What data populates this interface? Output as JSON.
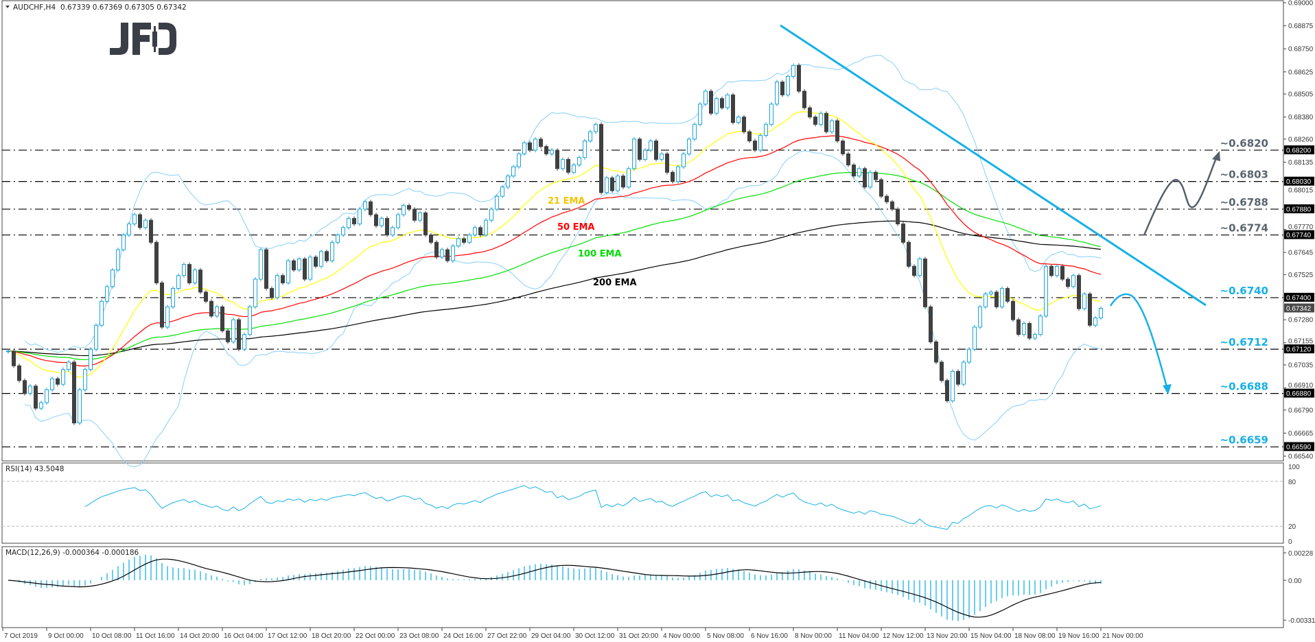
{
  "header": {
    "symbol": "AUDCHF,H4",
    "ohlc": "0.67339 0.67369 0.67305 0.67342"
  },
  "logo": "JFD",
  "colors": {
    "bull": "#1aa3d9",
    "bear": "#404040",
    "ema21": "#ffff00",
    "ema21_label": "#f5c400",
    "ema50": "#ff0000",
    "ema100": "#00dd00",
    "ema200": "#000000",
    "bands": "#87cefa",
    "trendline": "#17b0e6",
    "bull_scenario": "#56606a",
    "bear_scenario": "#17b0e6",
    "resistance_label": "#5a6570",
    "support_label": "#17b0e6"
  },
  "chart_data": {
    "type": "candlestick",
    "title": "AUDCHF,H4",
    "x_tick_labels": [
      "7 Oct 2019",
      "9 Oct 00:00",
      "10 Oct 08:00",
      "11 Oct 16:00",
      "14 Oct 20:00",
      "16 Oct 04:00",
      "17 Oct 12:00",
      "18 Oct 20:00",
      "22 Oct 00:00",
      "23 Oct 08:00",
      "24 Oct 16:00",
      "27 Oct 22:00",
      "29 Oct 04:00",
      "30 Oct 12:00",
      "31 Oct 20:00",
      "4 Nov 00:00",
      "5 Nov 08:00",
      "6 Nov 16:00",
      "8 Nov 00:00",
      "11 Nov 04:00",
      "12 Nov 12:00",
      "13 Nov 20:00",
      "15 Nov 04:00",
      "18 Nov 08:00",
      "19 Nov 16:00",
      "21 Nov 00:00"
    ],
    "y_ticks": [
      "0.69000",
      "0.68875",
      "0.68750",
      "0.68625",
      "0.68505",
      "0.68380",
      "0.68260",
      "0.68135",
      "0.68015",
      "0.67770",
      "0.67645",
      "0.67525",
      "0.67280",
      "0.67155",
      "0.67035",
      "0.66910",
      "0.66790",
      "0.66665",
      "0.66540"
    ],
    "ylim": [
      0.6654,
      0.69
    ],
    "last_price": "0.67342",
    "closes": [
      0.6711,
      0.6703,
      0.6695,
      0.6688,
      0.6692,
      0.668,
      0.6683,
      0.669,
      0.6696,
      0.6693,
      0.6701,
      0.6705,
      0.6672,
      0.669,
      0.6701,
      0.6712,
      0.6725,
      0.6738,
      0.6746,
      0.6755,
      0.6766,
      0.6774,
      0.678,
      0.6785,
      0.6778,
      0.6782,
      0.677,
      0.6748,
      0.6724,
      0.6735,
      0.6745,
      0.6752,
      0.6758,
      0.6748,
      0.6755,
      0.6743,
      0.6738,
      0.673,
      0.6735,
      0.6722,
      0.6716,
      0.6728,
      0.6712,
      0.672,
      0.6735,
      0.675,
      0.6766,
      0.6745,
      0.674,
      0.6752,
      0.6748,
      0.676,
      0.6755,
      0.6761,
      0.675,
      0.6762,
      0.6757,
      0.6765,
      0.676,
      0.677,
      0.6774,
      0.6778,
      0.6783,
      0.678,
      0.6788,
      0.6792,
      0.6785,
      0.6779,
      0.6783,
      0.6774,
      0.6778,
      0.6785,
      0.679,
      0.6788,
      0.6782,
      0.6786,
      0.6774,
      0.677,
      0.6762,
      0.6766,
      0.676,
      0.6768,
      0.6772,
      0.677,
      0.6774,
      0.6778,
      0.6774,
      0.6782,
      0.6788,
      0.6795,
      0.68,
      0.6806,
      0.6811,
      0.6818,
      0.6824,
      0.682,
      0.6826,
      0.6822,
      0.6818,
      0.682,
      0.681,
      0.6815,
      0.6808,
      0.6812,
      0.6816,
      0.6825,
      0.683,
      0.6834,
      0.6797,
      0.6805,
      0.6798,
      0.6806,
      0.68,
      0.681,
      0.6826,
      0.6815,
      0.682,
      0.6825,
      0.6815,
      0.6818,
      0.6808,
      0.6803,
      0.6811,
      0.6818,
      0.6826,
      0.6834,
      0.6845,
      0.6852,
      0.684,
      0.6848,
      0.6843,
      0.685,
      0.6835,
      0.6838,
      0.683,
      0.6825,
      0.682,
      0.6828,
      0.6834,
      0.6845,
      0.6857,
      0.685,
      0.686,
      0.6866,
      0.6852,
      0.6843,
      0.6838,
      0.6834,
      0.684,
      0.683,
      0.6836,
      0.6825,
      0.6818,
      0.6812,
      0.6806,
      0.681,
      0.68,
      0.6808,
      0.6804,
      0.6795,
      0.6792,
      0.6788,
      0.678,
      0.677,
      0.6757,
      0.6752,
      0.6761,
      0.6735,
      0.6716,
      0.6705,
      0.6695,
      0.6684,
      0.67,
      0.6693,
      0.6705,
      0.6712,
      0.6724,
      0.6735,
      0.6742,
      0.6743,
      0.6735,
      0.6745,
      0.6738,
      0.6728,
      0.672,
      0.6726,
      0.6718,
      0.672,
      0.673,
      0.6757,
      0.6752,
      0.6757,
      0.675,
      0.6746,
      0.6752,
      0.6734,
      0.6742,
      0.6725,
      0.6729,
      0.67342
    ],
    "levels": [
      {
        "value": 0.682,
        "label": "~0.6820",
        "axis_label": "0.68200",
        "kind": "resistance"
      },
      {
        "value": 0.6803,
        "label": "~0.6803",
        "axis_label": "0.68030",
        "kind": "resistance"
      },
      {
        "value": 0.6788,
        "label": "~0.6788",
        "axis_label": "0.67880",
        "kind": "resistance"
      },
      {
        "value": 0.6774,
        "label": "~0.6774",
        "axis_label": "0.67740",
        "kind": "resistance"
      },
      {
        "value": 0.674,
        "label": "~0.6740",
        "axis_label": "0.67400",
        "kind": "support"
      },
      {
        "value": 0.6712,
        "label": "~0.6712",
        "axis_label": "0.67120",
        "kind": "support"
      },
      {
        "value": 0.6688,
        "label": "~0.6688",
        "axis_label": "0.66880",
        "kind": "support"
      },
      {
        "value": 0.6659,
        "label": "~0.6659",
        "axis_label": "0.66590",
        "kind": "support"
      }
    ],
    "ema_labels": {
      "ema21": "21 EMA",
      "ema50": "50 EMA",
      "ema100": "100 EMA",
      "ema200": "200 EMA"
    },
    "ema_periods": {
      "ema21": 21,
      "ema50": 50,
      "ema100": 100,
      "ema200": 200
    },
    "bollinger": {
      "period": 20,
      "deviation": 2
    }
  },
  "rsi": {
    "label": "RSI(14) 43.5048",
    "period": 14,
    "ticks": [
      "100",
      "80",
      "20",
      "0"
    ],
    "levels": [
      80,
      20
    ]
  },
  "macd": {
    "label": "MACD(12,26,9) -0.000364 -0.000186",
    "params": [
      12,
      26,
      9
    ],
    "ticks": [
      "0.00228",
      "0.00",
      "-0.003312"
    ]
  }
}
